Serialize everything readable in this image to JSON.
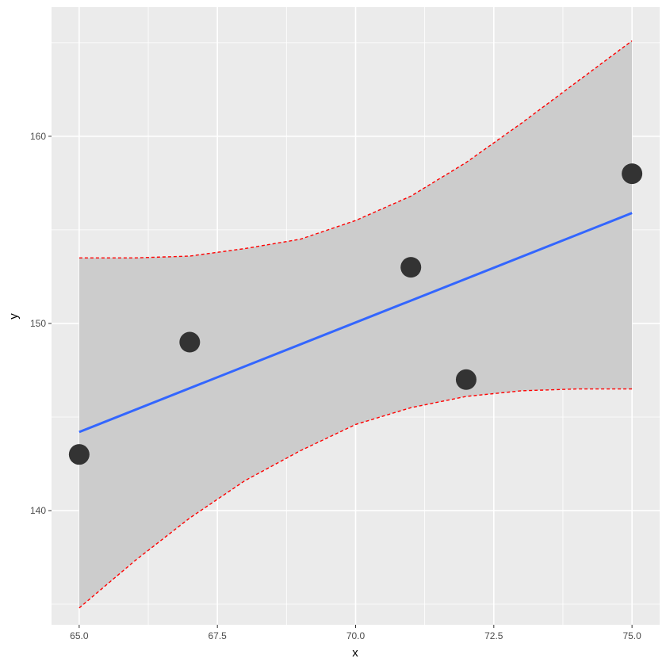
{
  "chart_data": {
    "type": "scatter",
    "xlabel": "x",
    "ylabel": "y",
    "xlim": [
      64.5,
      75.5
    ],
    "ylim": [
      133.9,
      166.9
    ],
    "x_ticks": [
      65.0,
      67.5,
      70.0,
      72.5,
      75.0
    ],
    "x_tick_labels": [
      "65.0",
      "67.5",
      "70.0",
      "72.5",
      "75.0"
    ],
    "y_ticks": [
      140,
      150,
      160
    ],
    "y_tick_labels": [
      "140",
      "150",
      "160"
    ],
    "x_minor": [
      66.25,
      68.75,
      71.25,
      73.75
    ],
    "y_minor": [
      135,
      145,
      155,
      165
    ],
    "grid": true,
    "points": [
      {
        "x": 65,
        "y": 143
      },
      {
        "x": 67,
        "y": 149
      },
      {
        "x": 71,
        "y": 153
      },
      {
        "x": 72,
        "y": 147
      },
      {
        "x": 75,
        "y": 158
      }
    ],
    "fit_line": {
      "x": [
        65,
        75
      ],
      "y": [
        144.2,
        155.9
      ]
    },
    "confidence_band": {
      "x": [
        65,
        66,
        67,
        68,
        69,
        70,
        71,
        72,
        73,
        74,
        75
      ],
      "upper": [
        153.5,
        153.5,
        153.6,
        154.0,
        154.5,
        155.5,
        156.8,
        158.6,
        160.7,
        162.9,
        165.1
      ],
      "lower": [
        134.8,
        137.3,
        139.6,
        141.6,
        143.2,
        144.6,
        145.5,
        146.1,
        146.4,
        146.5,
        146.5
      ]
    },
    "colors": {
      "panel": "#ebebeb",
      "grid": "#ffffff",
      "band": "#cccccc",
      "fit": "#3366ff",
      "bounds": "#ff0000",
      "points": "#333333"
    }
  }
}
